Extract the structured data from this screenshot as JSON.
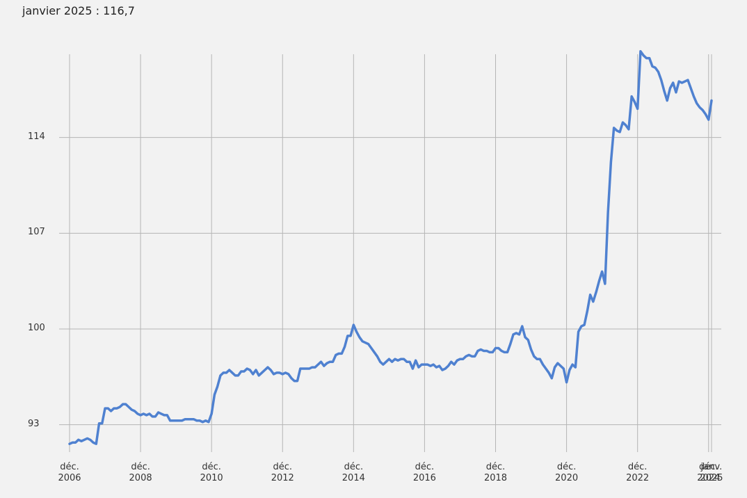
{
  "chart_data": {
    "type": "line",
    "title": "janvier 2025 : 116,7",
    "categories": [
      "déc. 2006",
      null,
      null,
      null,
      null,
      null,
      null,
      null,
      null,
      null,
      null,
      null,
      null,
      null,
      null,
      null,
      null,
      null,
      null,
      null,
      null,
      null,
      null,
      null,
      "déc. 2008",
      null,
      null,
      null,
      null,
      null,
      null,
      null,
      null,
      null,
      null,
      null,
      null,
      null,
      null,
      null,
      null,
      null,
      null,
      null,
      null,
      null,
      null,
      null,
      "déc. 2010",
      null,
      null,
      null,
      null,
      null,
      null,
      null,
      null,
      null,
      null,
      null,
      null,
      null,
      null,
      null,
      null,
      null,
      null,
      null,
      null,
      null,
      null,
      null,
      "déc. 2012",
      null,
      null,
      null,
      null,
      null,
      null,
      null,
      null,
      null,
      null,
      null,
      null,
      null,
      null,
      null,
      null,
      null,
      null,
      null,
      null,
      null,
      null,
      null,
      "déc. 2014",
      null,
      null,
      null,
      null,
      null,
      null,
      null,
      null,
      null,
      null,
      null,
      null,
      null,
      null,
      null,
      null,
      null,
      null,
      null,
      null,
      null,
      null,
      null,
      "déc. 2016",
      null,
      null,
      null,
      null,
      null,
      null,
      null,
      null,
      null,
      null,
      null,
      null,
      null,
      null,
      null,
      null,
      null,
      null,
      null,
      null,
      null,
      null,
      null,
      "déc. 2018",
      null,
      null,
      null,
      null,
      null,
      null,
      null,
      null,
      null,
      null,
      null,
      null,
      null,
      null,
      null,
      null,
      null,
      null,
      null,
      null,
      null,
      null,
      null,
      "déc. 2020",
      null,
      null,
      null,
      null,
      null,
      null,
      null,
      null,
      null,
      null,
      null,
      null,
      null,
      null,
      null,
      null,
      null,
      null,
      null,
      null,
      null,
      null,
      null,
      "déc. 2022",
      null,
      null,
      null,
      null,
      null,
      null,
      null,
      null,
      null,
      null,
      null,
      null,
      null,
      null,
      null,
      null,
      null,
      null,
      null,
      null,
      null,
      null,
      null,
      "déc. 2024",
      "janv. 2025"
    ],
    "values": [
      91.6,
      91.7,
      91.7,
      91.9,
      91.8,
      91.9,
      92.0,
      91.9,
      91.7,
      91.6,
      93.1,
      93.1,
      94.2,
      94.2,
      94.0,
      94.2,
      94.2,
      94.3,
      94.5,
      94.5,
      94.3,
      94.1,
      94.0,
      93.8,
      93.7,
      93.8,
      93.7,
      93.8,
      93.6,
      93.6,
      93.9,
      93.8,
      93.7,
      93.7,
      93.3,
      93.3,
      93.3,
      93.3,
      93.3,
      93.4,
      93.4,
      93.4,
      93.4,
      93.3,
      93.3,
      93.2,
      93.3,
      93.2,
      93.8,
      95.2,
      95.8,
      96.6,
      96.8,
      96.8,
      97.0,
      96.8,
      96.6,
      96.6,
      96.9,
      96.9,
      97.1,
      97.0,
      96.7,
      97.0,
      96.6,
      96.8,
      97.0,
      97.2,
      97.0,
      96.7,
      96.8,
      96.8,
      96.7,
      96.8,
      96.7,
      96.4,
      96.2,
      96.2,
      97.1,
      97.1,
      97.1,
      97.1,
      97.2,
      97.2,
      97.4,
      97.6,
      97.3,
      97.5,
      97.6,
      97.6,
      98.1,
      98.2,
      98.2,
      98.7,
      99.5,
      99.5,
      100.3,
      99.8,
      99.4,
      99.1,
      99.0,
      98.9,
      98.6,
      98.3,
      98.0,
      97.6,
      97.4,
      97.6,
      97.8,
      97.6,
      97.8,
      97.7,
      97.8,
      97.8,
      97.6,
      97.6,
      97.1,
      97.7,
      97.2,
      97.4,
      97.4,
      97.4,
      97.3,
      97.4,
      97.2,
      97.3,
      97.0,
      97.1,
      97.3,
      97.6,
      97.4,
      97.7,
      97.8,
      97.8,
      98.0,
      98.1,
      98.0,
      98.0,
      98.4,
      98.5,
      98.4,
      98.4,
      98.3,
      98.3,
      98.6,
      98.6,
      98.4,
      98.3,
      98.3,
      98.9,
      99.6,
      99.7,
      99.6,
      100.2,
      99.4,
      99.2,
      98.5,
      98.0,
      97.8,
      97.8,
      97.4,
      97.1,
      96.8,
      96.4,
      97.2,
      97.5,
      97.3,
      97.1,
      96.1,
      97.0,
      97.4,
      97.2,
      99.8,
      100.2,
      100.3,
      101.3,
      102.5,
      102.0,
      102.7,
      103.5,
      104.2,
      103.3,
      108.5,
      112.2,
      114.7,
      114.5,
      114.4,
      115.1,
      114.9,
      114.6,
      117.0,
      116.6,
      116.1,
      120.3,
      120.0,
      119.8,
      119.8,
      119.2,
      119.1,
      118.8,
      118.2,
      117.4,
      116.7,
      117.6,
      118.0,
      117.3,
      118.1,
      118.0,
      118.1,
      118.2,
      117.6,
      117.0,
      116.5,
      116.2,
      116.0,
      115.7,
      115.3,
      116.7
    ],
    "color": "#4f81d0",
    "ylim": [
      91,
      121
    ],
    "yticks": [
      93,
      100,
      107,
      114
    ],
    "grid": true
  }
}
